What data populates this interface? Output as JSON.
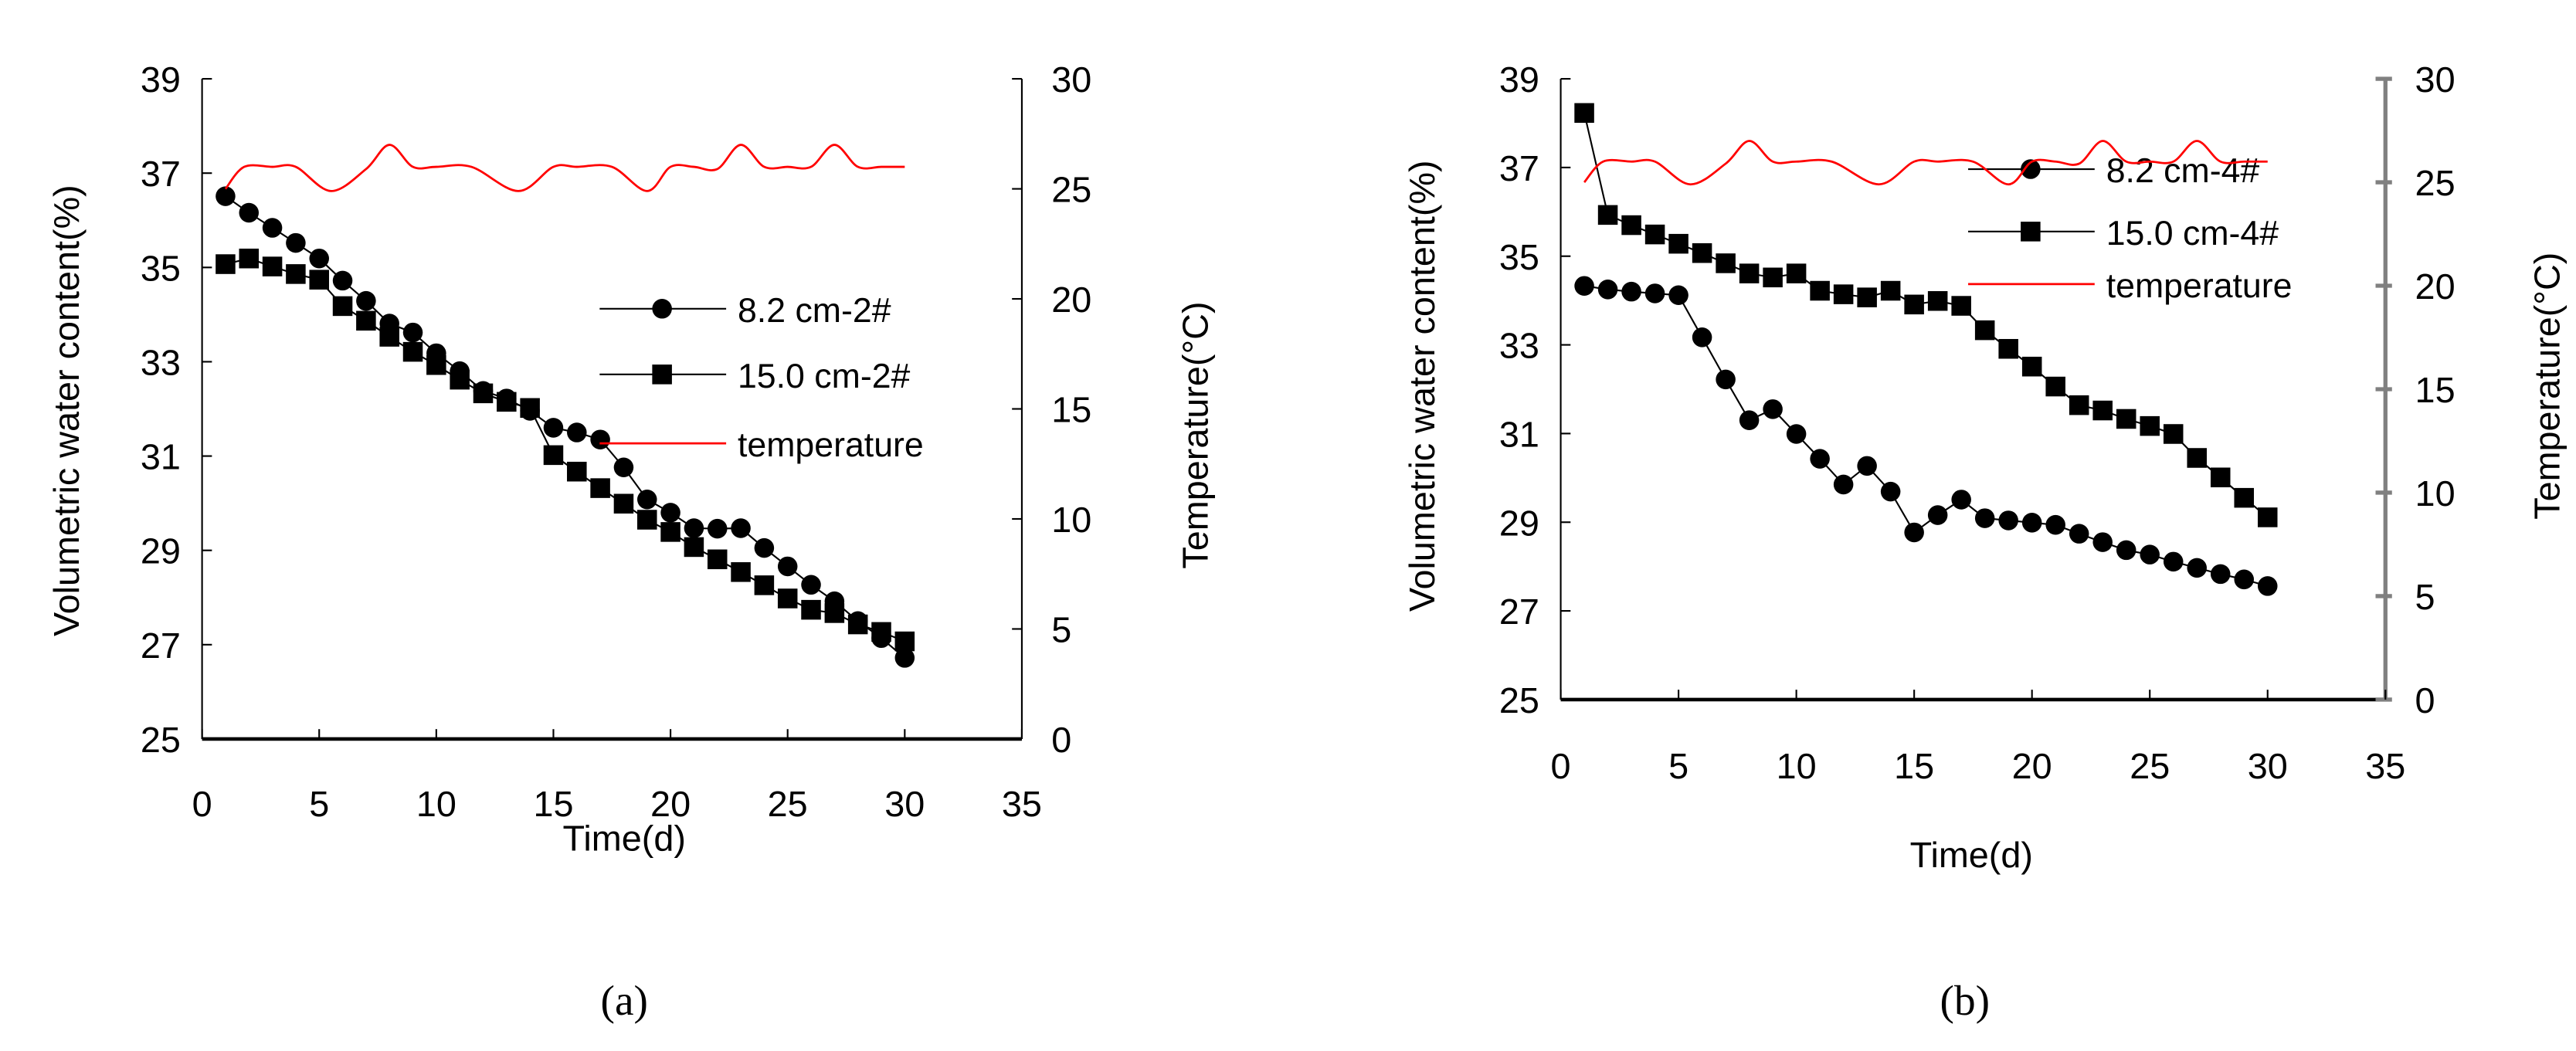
{
  "chart_data": [
    {
      "type": "line",
      "caption": "(a)",
      "xlabel": "Time(d)",
      "ylabel": "Volumetric water content(%)",
      "y2label": "Temperature(°C)",
      "xlim": [
        0,
        35
      ],
      "ylim": [
        25,
        39
      ],
      "y2lim": [
        0,
        30
      ],
      "xticks": [
        "0",
        "5",
        "10",
        "15",
        "20",
        "25",
        "30",
        "35"
      ],
      "yticks": [
        "25",
        "27",
        "29",
        "31",
        "33",
        "35",
        "37",
        "39"
      ],
      "y2ticks": [
        "0",
        "5",
        "10",
        "15",
        "20",
        "25",
        "30"
      ],
      "grid": false,
      "legend_placement": "center-right",
      "series": [
        {
          "name": "8.2 cm-2#",
          "marker": "circle",
          "color": "#000000",
          "axis": "left",
          "x": [
            1,
            2,
            3,
            4,
            5,
            6,
            7,
            8,
            9,
            10,
            11,
            12,
            13,
            14,
            15,
            16,
            17,
            18,
            19,
            20,
            21,
            22,
            23,
            24,
            25,
            26,
            27,
            28,
            29,
            30
          ],
          "values": [
            36.51,
            36.16,
            35.84,
            35.52,
            35.19,
            34.72,
            34.29,
            33.81,
            33.62,
            33.18,
            32.8,
            32.38,
            32.22,
            31.96,
            31.6,
            31.5,
            31.35,
            30.76,
            30.08,
            29.8,
            29.47,
            29.46,
            29.47,
            29.05,
            28.66,
            28.27,
            27.92,
            27.5,
            27.14,
            26.72
          ]
        },
        {
          "name": "15.0 cm-2#",
          "marker": "square",
          "color": "#000000",
          "axis": "left",
          "x": [
            1,
            2,
            3,
            4,
            5,
            6,
            7,
            8,
            9,
            10,
            11,
            12,
            13,
            14,
            15,
            16,
            17,
            18,
            19,
            20,
            21,
            22,
            23,
            24,
            25,
            26,
            27,
            28,
            29,
            30
          ],
          "values": [
            35.07,
            35.19,
            35.02,
            34.86,
            34.74,
            34.18,
            33.87,
            33.53,
            33.21,
            32.93,
            32.62,
            32.33,
            32.15,
            32.02,
            31.02,
            30.67,
            30.32,
            29.99,
            29.65,
            29.39,
            29.07,
            28.81,
            28.54,
            28.26,
            27.98,
            27.74,
            27.67,
            27.43,
            27.27,
            27.07
          ]
        },
        {
          "name": "temperature",
          "marker": "none",
          "color": "#ff0000",
          "axis": "right",
          "x": [
            1,
            1.8,
            3,
            4,
            5.5,
            7,
            8,
            9,
            10,
            11.5,
            13.5,
            15,
            16,
            17.5,
            19,
            20,
            21,
            22,
            23,
            24,
            25,
            26,
            27,
            28,
            29,
            30
          ],
          "values": [
            25.0,
            26.0,
            26.0,
            26.0,
            24.9,
            25.9,
            27.0,
            26.0,
            26.0,
            26.0,
            24.9,
            26.0,
            26.0,
            26.0,
            24.9,
            26.0,
            26.0,
            25.9,
            27.0,
            26.0,
            26.0,
            26.0,
            27.0,
            26.0,
            26.0,
            26.0
          ]
        }
      ]
    },
    {
      "type": "line",
      "caption": "(b)",
      "xlabel": "Time(d)",
      "ylabel": "Volumetric water content(%)",
      "y2label": "Temperature(°C)",
      "xlim": [
        0,
        35
      ],
      "ylim": [
        25,
        39
      ],
      "y2lim": [
        0,
        30
      ],
      "xticks": [
        "0",
        "5",
        "10",
        "15",
        "20",
        "25",
        "30",
        "35"
      ],
      "yticks": [
        "25",
        "27",
        "29",
        "31",
        "33",
        "35",
        "37",
        "39"
      ],
      "y2ticks": [
        "0",
        "5",
        "10",
        "15",
        "20",
        "25",
        "30"
      ],
      "grid": false,
      "legend_placement": "top-right",
      "right_axis_color": "#808080",
      "series": [
        {
          "name": "8.2 cm-4#",
          "marker": "circle",
          "color": "#000000",
          "axis": "left",
          "x": [
            1,
            2,
            3,
            4,
            5,
            6,
            7,
            8,
            9,
            10,
            11,
            12,
            13,
            14,
            15,
            16,
            17,
            18,
            19,
            20,
            21,
            22,
            23,
            24,
            25,
            26,
            27,
            28,
            29,
            30
          ],
          "values": [
            34.33,
            34.25,
            34.2,
            34.16,
            34.12,
            33.17,
            32.22,
            31.3,
            31.55,
            30.99,
            30.43,
            29.85,
            30.27,
            29.69,
            28.77,
            29.16,
            29.51,
            29.09,
            29.04,
            28.99,
            28.94,
            28.74,
            28.55,
            28.37,
            28.27,
            28.11,
            27.97,
            27.83,
            27.71,
            27.56
          ]
        },
        {
          "name": "15.0 cm-4#",
          "marker": "square",
          "color": "#000000",
          "axis": "left",
          "x": [
            1,
            2,
            3,
            4,
            5,
            6,
            7,
            8,
            9,
            10,
            11,
            12,
            13,
            14,
            15,
            16,
            17,
            18,
            19,
            20,
            21,
            22,
            23,
            24,
            25,
            26,
            27,
            28,
            29,
            30
          ],
          "values": [
            38.23,
            35.93,
            35.7,
            35.49,
            35.28,
            35.07,
            34.84,
            34.61,
            34.52,
            34.61,
            34.22,
            34.14,
            34.07,
            34.22,
            33.91,
            33.99,
            33.88,
            33.33,
            32.91,
            32.51,
            32.06,
            31.64,
            31.52,
            31.33,
            31.17,
            30.99,
            30.45,
            30.01,
            29.55,
            29.11
          ]
        },
        {
          "name": "temperature",
          "marker": "none",
          "color": "#ff0000",
          "axis": "right",
          "x": [
            1,
            1.8,
            3,
            4,
            5.5,
            7,
            8,
            9,
            10,
            11.5,
            13.5,
            15,
            16,
            17.5,
            19,
            20,
            21,
            22,
            23,
            24,
            25,
            26,
            27,
            28,
            29,
            30
          ],
          "values": [
            25.0,
            26.0,
            26.0,
            26.0,
            24.9,
            25.9,
            27.0,
            26.0,
            26.0,
            26.0,
            24.9,
            26.0,
            26.0,
            26.0,
            24.9,
            26.0,
            26.0,
            25.9,
            27.0,
            26.0,
            26.0,
            26.0,
            27.0,
            26.0,
            26.0,
            26.0
          ]
        }
      ]
    }
  ]
}
